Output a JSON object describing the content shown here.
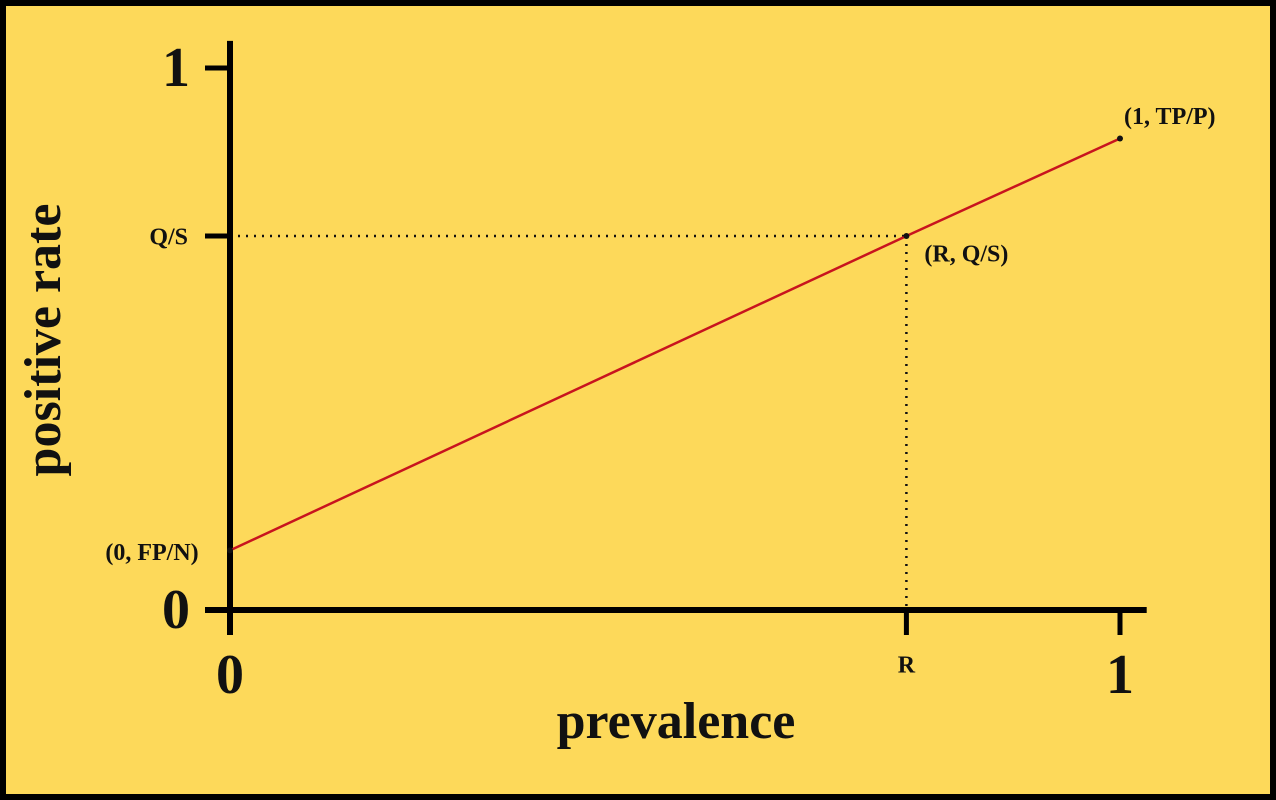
{
  "chart_data": {
    "type": "line",
    "x_label": "prevalence",
    "y_label": "positive rate",
    "x": [
      0,
      0.76,
      1
    ],
    "series": [
      {
        "color": "#c8141e",
        "values": [
          0.11,
          0.69,
          0.87
        ],
        "point_labels": [
          "(0, FP/N)",
          "(R, Q/S)",
          "(1, TP/P)"
        ]
      }
    ],
    "xlim": [
      0,
      1.03
    ],
    "ylim": [
      0,
      1.05
    ],
    "xticks": [
      0,
      {
        "value": 0.76,
        "label": "R"
      },
      1
    ],
    "yticks": [
      0,
      {
        "value": 0.69,
        "label": "Q/S"
      },
      1
    ],
    "guides": true
  }
}
